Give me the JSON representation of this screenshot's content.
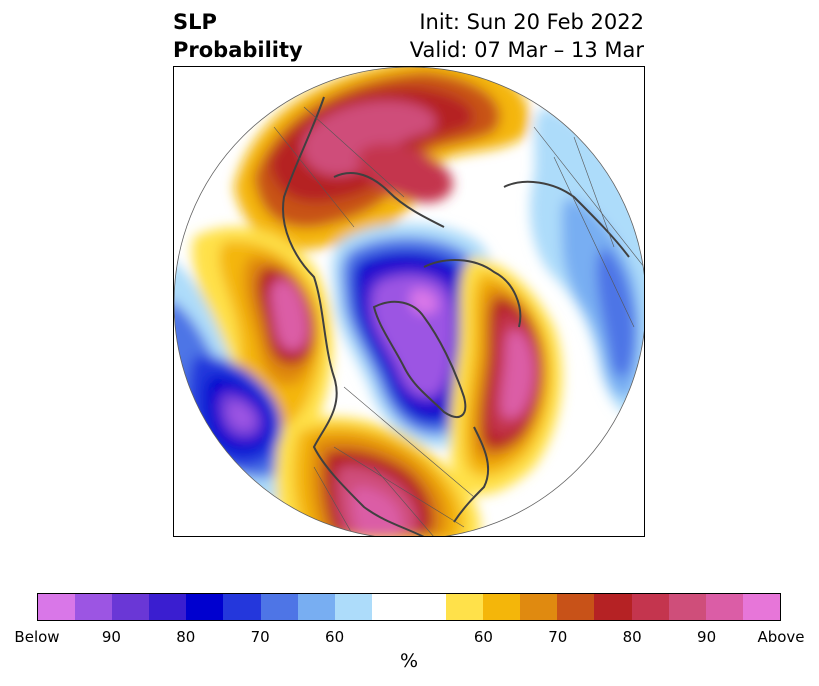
{
  "title": {
    "left_line1": "SLP",
    "left_line2": "Probability",
    "right_line1": "Init: Sun 20 Feb 2022",
    "right_line2": "Valid: 07 Mar – 13 Mar"
  },
  "colorbar": {
    "colors": [
      "#d977e8",
      "#9c55e3",
      "#6a37d6",
      "#3a1ed0",
      "#0000cf",
      "#2437dc",
      "#4e75e6",
      "#78aef2",
      "#addcfa",
      "#ffffff",
      "#ffffff",
      "#ffe14a",
      "#f4b60a",
      "#e08a10",
      "#c85218",
      "#b52224",
      "#c4354e",
      "#cf4e7a",
      "#db5da6",
      "#e776d9"
    ],
    "tick_labels": [
      "Below",
      "90",
      "80",
      "70",
      "60",
      "60",
      "70",
      "80",
      "90",
      "Above"
    ],
    "unit": "%"
  },
  "map": {
    "projection": "north-polar-stereographic",
    "variable": "sea-level-pressure-probability"
  }
}
